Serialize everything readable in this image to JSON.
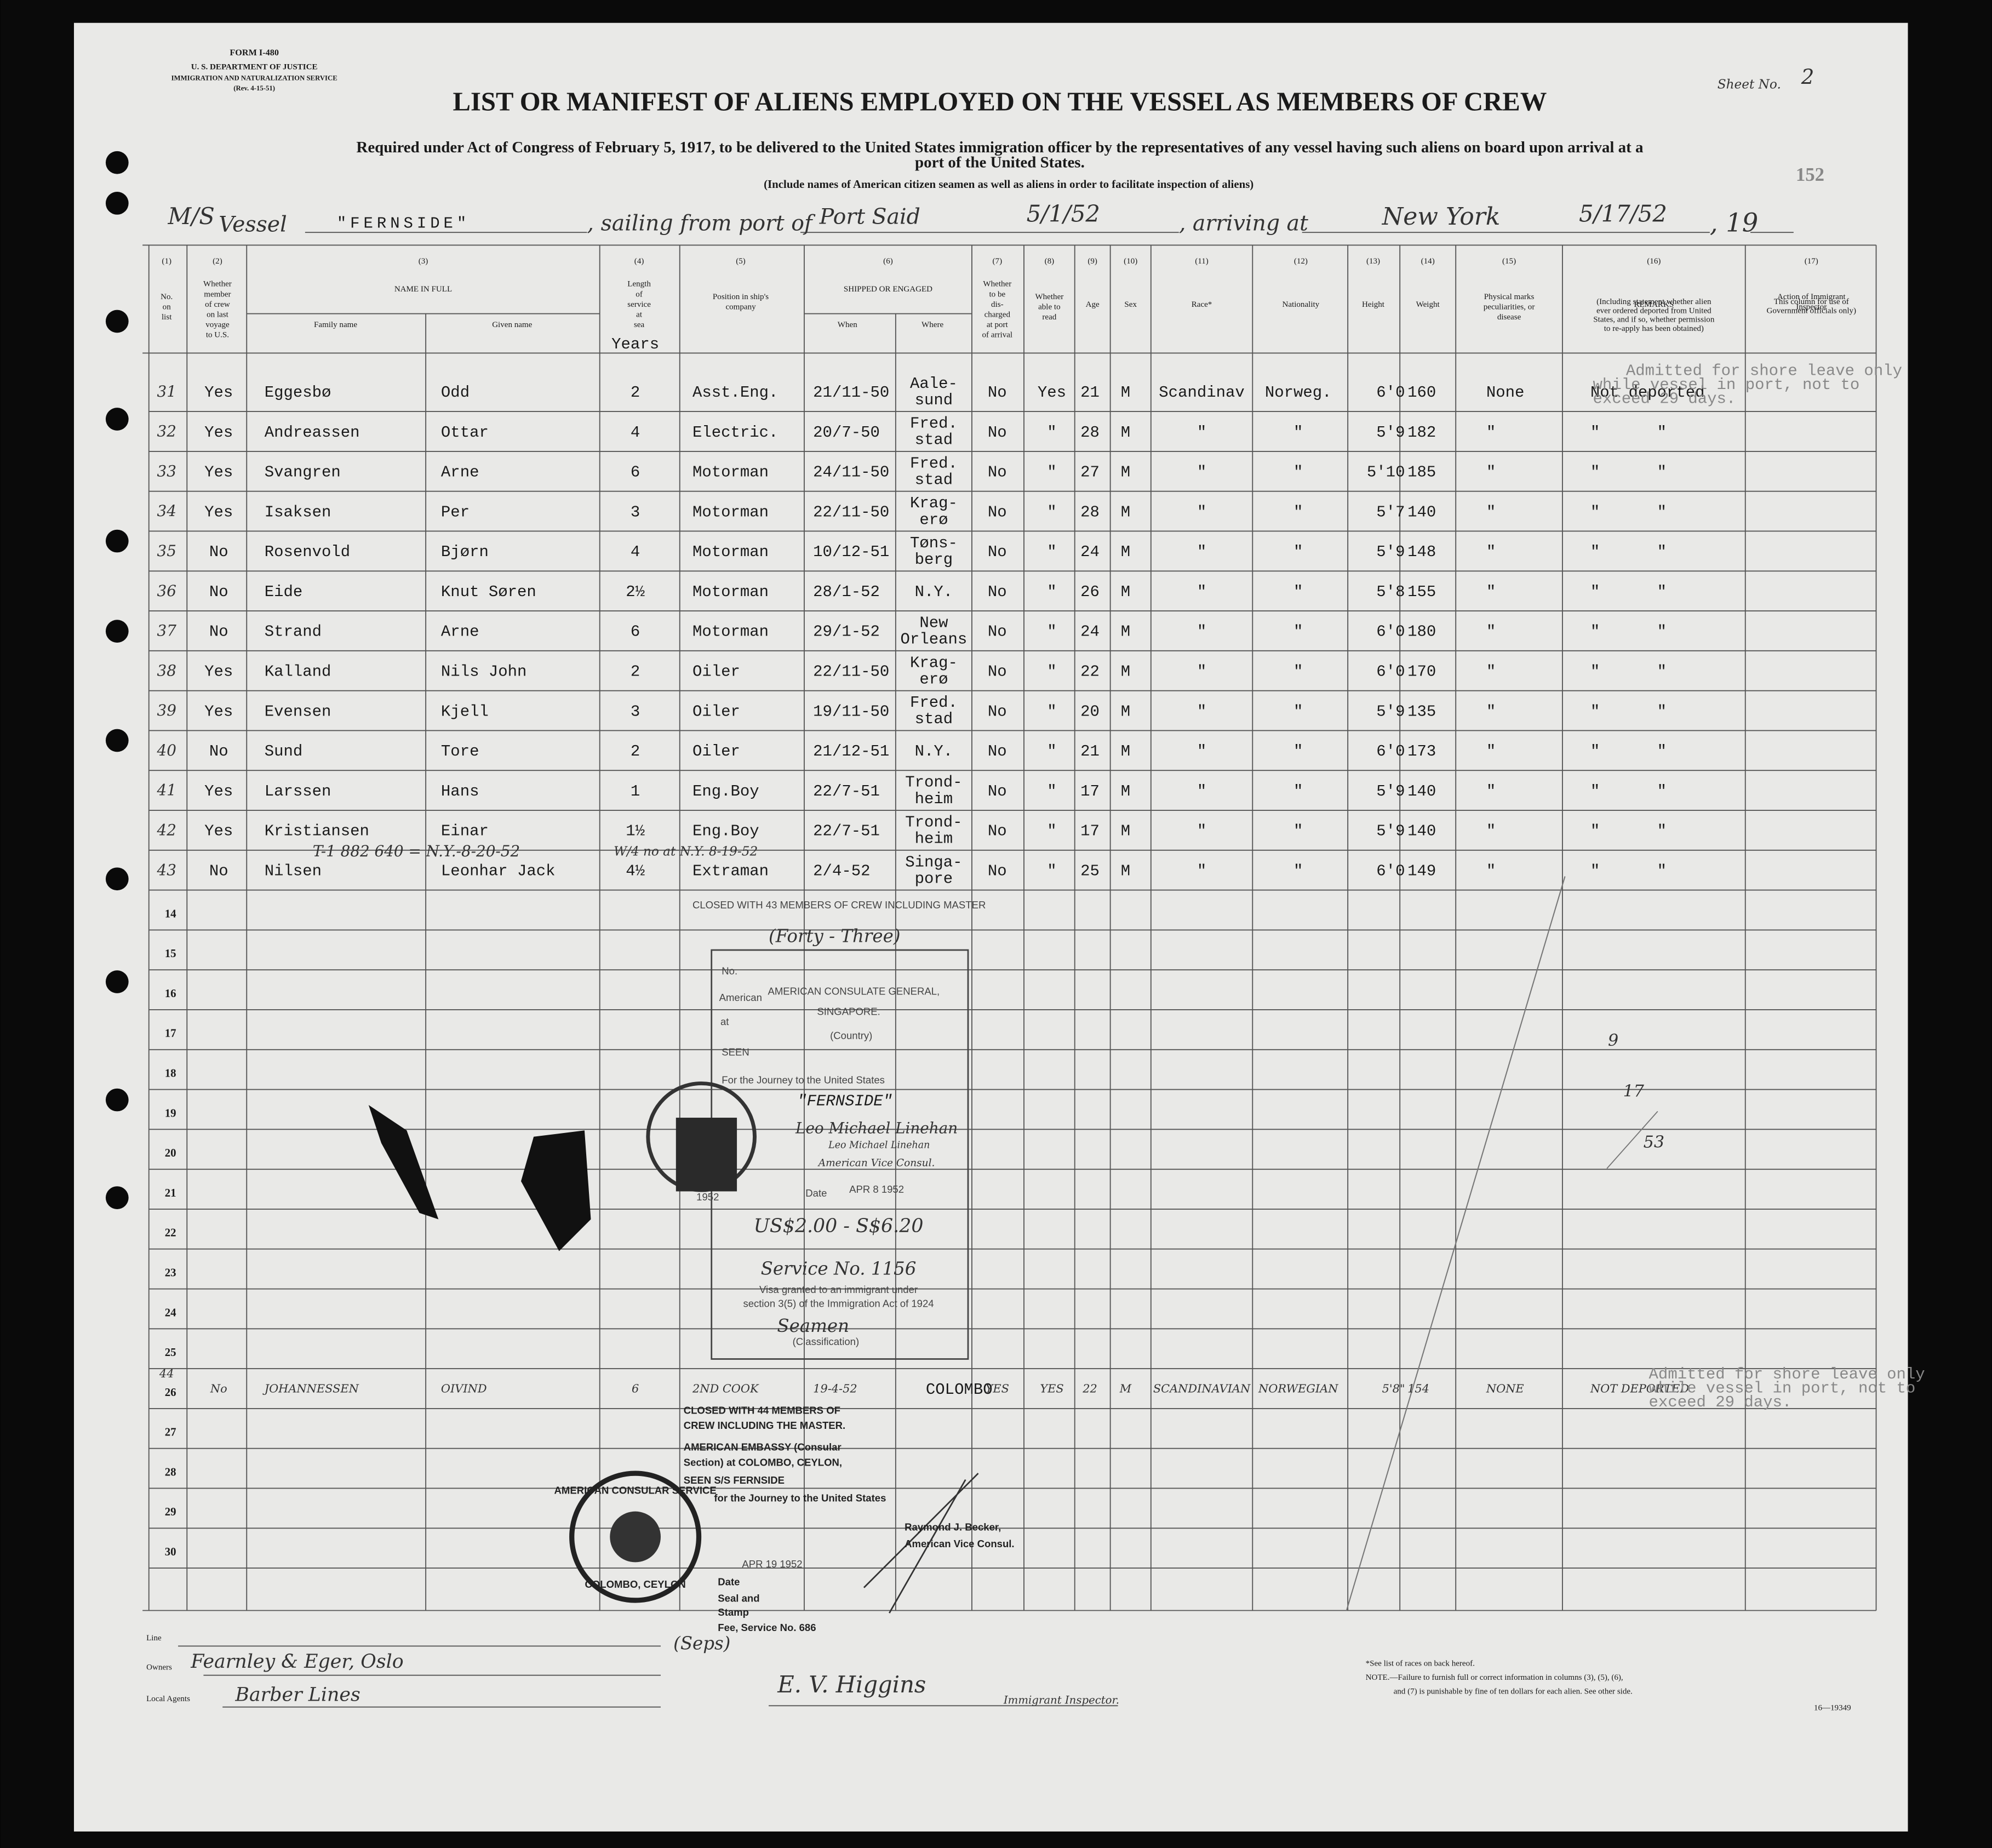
{
  "header": {
    "form": "FORM I-480",
    "department": "U. S. DEPARTMENT OF JUSTICE",
    "service": "IMMIGRATION AND NATURALIZATION SERVICE",
    "revision": "(Rev. 4-15-51)",
    "title": "LIST OR MANIFEST OF ALIENS EMPLOYED ON THE VESSEL AS MEMBERS OF CREW",
    "requirement": [
      "Required under Act of Congress of February 5, 1917, to be delivered to the United States immigration officer by the representatives of any vessel having such aliens on board upon arrival at a",
      "port of the United States."
    ],
    "include_note": "(Include names of American citizen seamen as well as aliens in order to facilitate inspection of aliens)",
    "sheet_label": "Sheet No.",
    "sheet_number": "2",
    "stamp_number": "152"
  },
  "vessel": {
    "prefix_handwritten": "M/S",
    "label": "Vessel",
    "name": "\"FERNSIDE\"",
    "sailing_label": ", sailing from port of",
    "port": "Port Said",
    "sailing_date": "5/1/52",
    "arriving_label": ", arriving at",
    "destination": "New York",
    "arrival_date": "5/17/52",
    "year_label": ", 19"
  },
  "columns": [
    {
      "number": "(1)",
      "label": [
        "No.",
        "on",
        "list"
      ]
    },
    {
      "number": "(2)",
      "label": [
        "Whether",
        "member",
        "of crew",
        "on last",
        "voyage",
        "to U.S."
      ]
    },
    {
      "number": "(3)",
      "label": [
        "NAME IN FULL"
      ],
      "sub": [
        "Family name",
        "Given name"
      ]
    },
    {
      "number": "(4)",
      "label": [
        "Length",
        "of",
        "service",
        "at",
        "sea"
      ],
      "unit": "Years"
    },
    {
      "number": "(5)",
      "label": [
        "Position in ship's",
        "company"
      ]
    },
    {
      "number": "(6)",
      "label": [
        "SHIPPED OR ENGAGED"
      ],
      "sub": [
        "When",
        "Where"
      ]
    },
    {
      "number": "(7)",
      "label": [
        "Whether",
        "to be",
        "dis-",
        "charged",
        "at port",
        "of arrival"
      ]
    },
    {
      "number": "(8)",
      "label": [
        "Whether",
        "able to",
        "read"
      ]
    },
    {
      "number": "(9)",
      "label": [
        "Age"
      ]
    },
    {
      "number": "(10)",
      "label": [
        "Sex"
      ]
    },
    {
      "number": "(11)",
      "label": [
        "Race*"
      ]
    },
    {
      "number": "(12)",
      "label": [
        "Nationality"
      ]
    },
    {
      "number": "(13)",
      "label": [
        "Height"
      ]
    },
    {
      "number": "(14)",
      "label": [
        "Weight"
      ]
    },
    {
      "number": "(15)",
      "label": [
        "Physical marks",
        "peculiarities, or",
        "disease"
      ]
    },
    {
      "number": "(16)",
      "label": [
        "REMARKS"
      ],
      "note": [
        "(Including statement whether alien",
        "ever ordered deported from United",
        "States, and if so, whether permission",
        "to re-apply has been obtained)"
      ]
    },
    {
      "number": "(17)",
      "label": [
        "Action of Immigrant",
        "Inspector"
      ],
      "note": [
        "This column for use of",
        "Government officials only)"
      ]
    }
  ],
  "rows": [
    [
      "31",
      "Yes",
      "Eggesbø",
      "Odd",
      "2",
      "Asst.Eng.",
      "21/11-50",
      [
        "Aale-",
        "sund"
      ],
      "No",
      "Yes",
      "21",
      "M",
      "Scandinav",
      "Norweg.",
      "6'0",
      "160",
      "None",
      "Not deported"
    ],
    [
      "32",
      "Yes",
      "Andreassen",
      "Ottar",
      "4",
      "Electric.",
      "20/7-50",
      [
        "Fred.",
        "stad"
      ],
      "No",
      "\"",
      "28",
      "M",
      "\"",
      "\"",
      "5'9",
      "182",
      "\"",
      "\"      \""
    ],
    [
      "33",
      "Yes",
      "Svangren",
      "Arne",
      "6",
      "Motorman",
      "24/11-50",
      [
        "Fred.",
        "stad"
      ],
      "No",
      "\"",
      "27",
      "M",
      "\"",
      "\"",
      "5'10",
      "185",
      "\"",
      "\"      \""
    ],
    [
      "34",
      "Yes",
      "Isaksen",
      "Per",
      "3",
      "Motorman",
      "22/11-50",
      [
        "Krag-",
        "erø"
      ],
      "No",
      "\"",
      "28",
      "M",
      "\"",
      "\"",
      "5'7",
      "140",
      "\"",
      "\"      \""
    ],
    [
      "35",
      "No",
      "Rosenvold",
      "Bjørn",
      "4",
      "Motorman",
      "10/12-51",
      [
        "Tøns-",
        "berg"
      ],
      "No",
      "\"",
      "24",
      "M",
      "\"",
      "\"",
      "5'9",
      "148",
      "\"",
      "\"      \""
    ],
    [
      "36",
      "No",
      "Eide",
      "Knut Søren",
      "2½",
      "Motorman",
      "28/1-52",
      [
        "N.Y."
      ],
      "No",
      "\"",
      "26",
      "M",
      "\"",
      "\"",
      "5'8",
      "155",
      "\"",
      "\"      \""
    ],
    [
      "37",
      "No",
      "Strand",
      "Arne",
      "6",
      "Motorman",
      "29/1-52",
      [
        "New",
        "Orleans"
      ],
      "No",
      "\"",
      "24",
      "M",
      "\"",
      "\"",
      "6'0",
      "180",
      "\"",
      "\"      \""
    ],
    [
      "38",
      "Yes",
      "Kalland",
      "Nils John",
      "2",
      "Oiler",
      "22/11-50",
      [
        "Krag-",
        "erø"
      ],
      "No",
      "\"",
      "22",
      "M",
      "\"",
      "\"",
      "6'0",
      "170",
      "\"",
      "\"      \""
    ],
    [
      "39",
      "Yes",
      "Evensen",
      "Kjell",
      "3",
      "Oiler",
      "19/11-50",
      [
        "Fred.",
        "stad"
      ],
      "No",
      "\"",
      "20",
      "M",
      "\"",
      "\"",
      "5'9",
      "135",
      "\"",
      "\"      \""
    ],
    [
      "40",
      "No",
      "Sund",
      "Tore",
      "2",
      "Oiler",
      "21/12-51",
      [
        "N.Y."
      ],
      "No",
      "\"",
      "21",
      "M",
      "\"",
      "\"",
      "6'0",
      "173",
      "\"",
      "\"      \""
    ],
    [
      "41",
      "Yes",
      "Larssen",
      "Hans",
      "1",
      "Eng.Boy",
      "22/7-51",
      [
        "Trond-",
        "heim"
      ],
      "No",
      "\"",
      "17",
      "M",
      "\"",
      "\"",
      "5'9",
      "140",
      "\"",
      "\"      \""
    ],
    [
      "42",
      "Yes",
      "Kristiansen",
      "Einar",
      "1½",
      "Eng.Boy",
      "22/7-51",
      [
        "Trond-",
        "heim"
      ],
      "No",
      "\"",
      "17",
      "M",
      "\"",
      "\"",
      "5'9",
      "140",
      "\"",
      "\"      \""
    ],
    [
      "43",
      "No",
      "Nilsen",
      "Leonhar Jack",
      "4½",
      "Extraman",
      "2/4-52",
      [
        "Singa-",
        "pore"
      ],
      "No",
      "\"",
      "25",
      "M",
      "\"",
      "\"",
      "6'0",
      "149",
      "\"",
      "\"      \""
    ],
    [
      "44",
      "No",
      "JOHANNESSEN",
      "OIVIND",
      "6",
      "2ND COOK",
      "19-4-52",
      [
        "COLOMBO"
      ],
      "YES",
      "YES",
      "22",
      "M",
      "SCANDINAVIAN",
      "NORWEGIAN",
      "5'8\"",
      "154",
      "NONE",
      "NOT DEPORTED"
    ]
  ],
  "line_numbers": [
    "14",
    "15",
    "16",
    "17",
    "18",
    "19",
    "20",
    "21",
    "22",
    "23",
    "24",
    "25",
    "26",
    "27",
    "28",
    "29",
    "30"
  ],
  "annotations": {
    "shore_leave_1": [
      "Admitted for shore leave only",
      "while vessel in port, not to",
      "exceed 29 days."
    ],
    "shore_leave_2": [
      "Admitted for shore leave only",
      "while vessel in port, not to",
      "exceed 29 days."
    ],
    "line_42_note": "T-1 882 640 = N.Y.-8-20-52",
    "line_42_note_2": "W/4 no at N.Y. 8-19-52",
    "margin_note": [
      "9",
      "17",
      "53"
    ]
  },
  "stamps": {
    "closed_43": "CLOSED WITH 43 MEMBERS OF CREW INCLUDING MASTER",
    "closed_43_words": "(Forty - Three)",
    "singapore": {
      "no": "No.",
      "consulate": "AMERICAN CONSULATE GENERAL,",
      "american": "American",
      "city": "SINGAPORE.",
      "at": "at",
      "country": "(Country)",
      "seen": "SEEN",
      "journey": "For the Journey to the United States",
      "ship": "\"FERNSIDE\"",
      "signature": "Leo Michael Linehan",
      "name": "Leo Michael Linehan",
      "office": "American Vice Consul.",
      "date_label": "Date",
      "date": "APR 8 1952",
      "fee": "US$2.00 - S$6.20",
      "service": "Service No. 1156",
      "visa": [
        "Visa granted to an immigrant under",
        "section 3(5) of the Immigration Act of 1924"
      ],
      "classification": "Seamen",
      "classification_label": "(Classification)",
      "seal_year": "1952"
    },
    "colombo": {
      "closed": [
        "CLOSED WITH 44 MEMBERS OF",
        "CREW INCLUDING THE MASTER."
      ],
      "embassy": [
        "AMERICAN EMBASSY (Consular",
        "Section) at COLOMBO, CEYLON,"
      ],
      "seen": "SEEN S/S FERNSIDE",
      "journey": "for the Journey to the United States",
      "name": "Raymond J. Becker,",
      "office": "American Vice Consul.",
      "date": "APR 19 1952",
      "date_label": "Date",
      "seal": [
        "Seal and",
        "Stamp"
      ],
      "fee": "Fee, Service No. 686",
      "remark": "(Seps)",
      "seal_text": [
        "AMERICAN CONSULAR SERVICE",
        "COLOMBO, CEYLON"
      ]
    }
  },
  "footer": {
    "line_label": "Line",
    "owners_label": "Owners",
    "owners": "Fearnley & Eger, Oslo",
    "agents_label": "Local Agents",
    "agents": "Barber Lines",
    "inspector_signature": "E. V. Higgins",
    "inspector_label": "Immigrant Inspector.",
    "races_note": "*See list of races on back hereof.",
    "note": [
      "NOTE.—Failure to furnish full or correct information in columns (3), (5), (6),",
      "and (7) is punishable by fine of ten dollars for each alien. See other side."
    ],
    "form_code": "16—19349"
  }
}
